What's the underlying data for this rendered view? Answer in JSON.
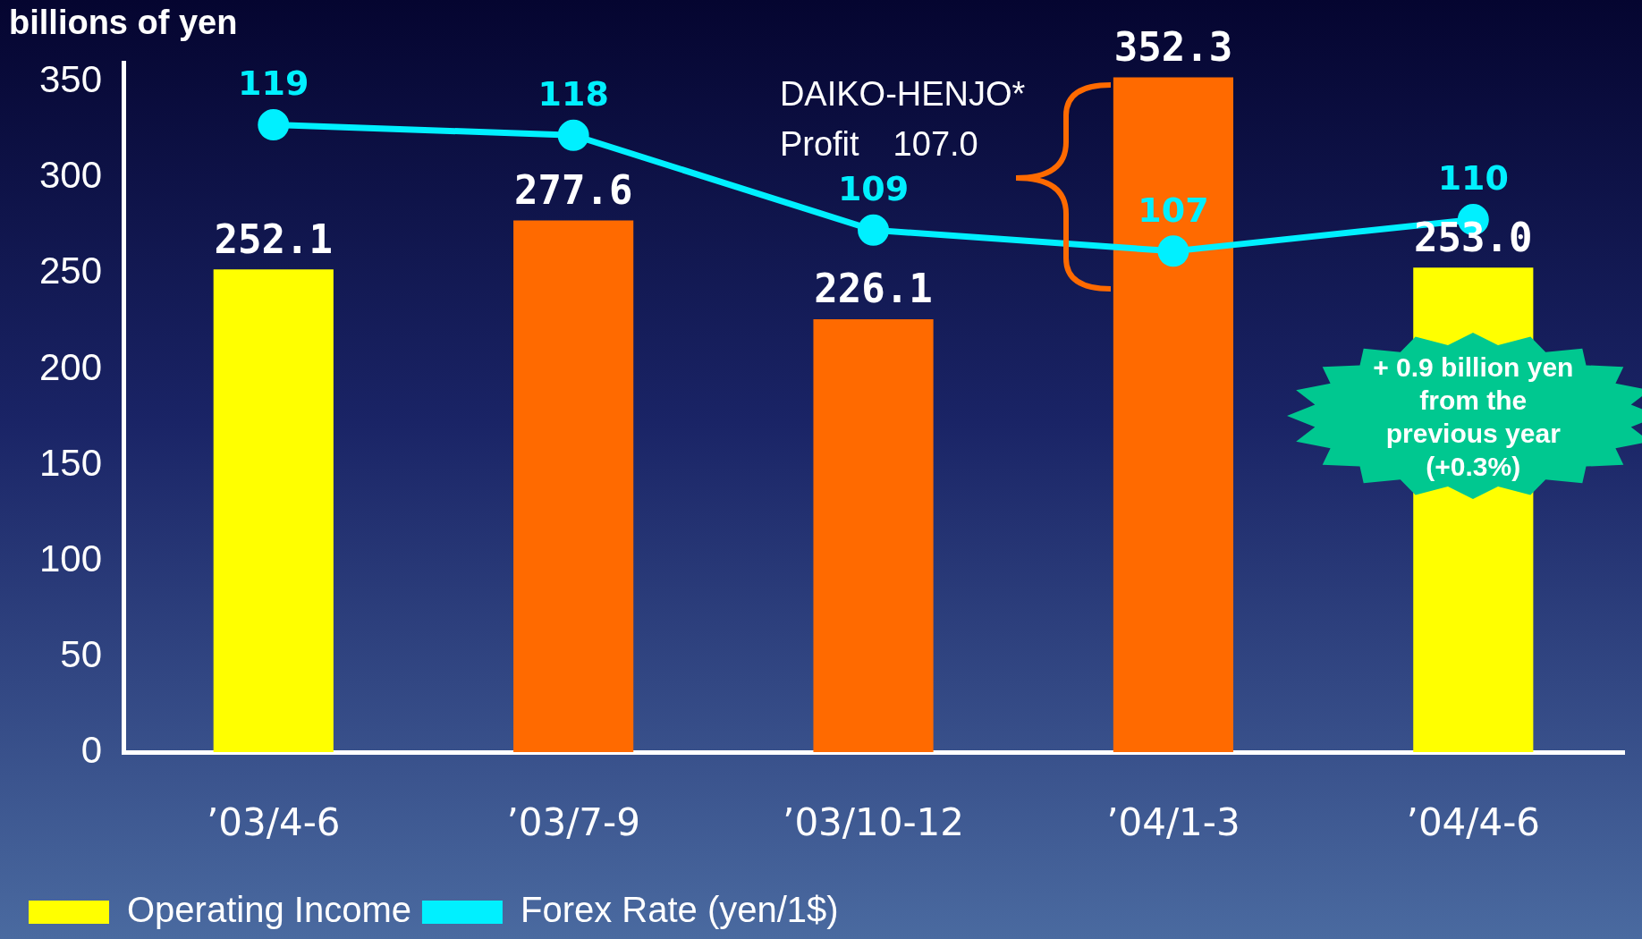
{
  "chart_data": {
    "type": "bar",
    "ylabel": "billions of yen",
    "categories": [
      "’03/4-6",
      "’03/7-9",
      "’03/10-12",
      "’04/1-3",
      "’04/4-6"
    ],
    "series": [
      {
        "name": "Operating Income",
        "value_labels": [
          "252.1",
          "277.6",
          "226.1",
          "352.3",
          "253.0"
        ],
        "colors": [
          "#ffff00",
          "#ff6a00",
          "#ff6a00",
          "#ff6a00",
          "#ffff00"
        ],
        "color": "#ffff00",
        "values": [
          252.1,
          277.6,
          226.1,
          352.3,
          253.0
        ]
      },
      {
        "name": "Forex Rate (yen/1$)",
        "type": "line",
        "axis": "y2",
        "color": "#00f0ff",
        "values": [
          119,
          118,
          109,
          107,
          110
        ]
      }
    ],
    "ylim": [
      0,
      360
    ],
    "yticks": [
      0,
      50,
      100,
      150,
      200,
      250,
      300,
      350
    ],
    "y2lim": [
      59.4,
      124.9
    ],
    "data_labels": true,
    "grid": false,
    "legend": "bottom",
    "marker": "circle",
    "line_style": "solid",
    "annotations": [
      "DAIKO-HENJO*\nProfit　107.0",
      "+ 0.9 billion yen\nfrom the\nprevious year\n(+0.3%)"
    ]
  }
}
